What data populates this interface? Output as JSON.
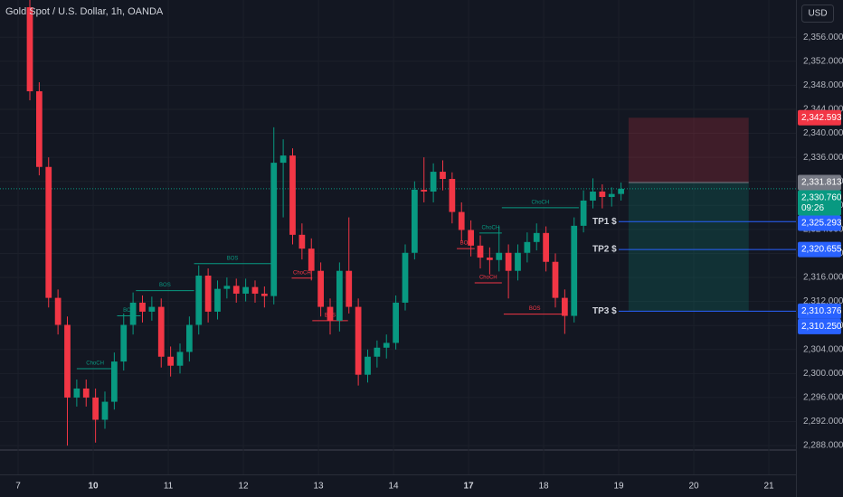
{
  "chart_data": {
    "type": "candlestick",
    "title": "Gold Spot / U.S. Dollar, 1h, OANDA",
    "currency": "USD",
    "countdown": "09:26",
    "up_color": "#089981",
    "down_color": "#f23645",
    "xlim": [
      -3.18,
      81.64
    ],
    "xticks": [
      {
        "value": -1.25,
        "label": "7"
      },
      {
        "value": 6.75,
        "label": "10",
        "bold": true
      },
      {
        "value": 14.75,
        "label": "11"
      },
      {
        "value": 22.75,
        "label": "12"
      },
      {
        "value": 30.75,
        "label": "13"
      },
      {
        "value": 38.75,
        "label": "14"
      },
      {
        "value": 46.75,
        "label": "17",
        "bold": true
      },
      {
        "value": 54.75,
        "label": "18"
      },
      {
        "value": 62.75,
        "label": "19"
      },
      {
        "value": 70.75,
        "label": "20"
      },
      {
        "value": 78.75,
        "label": "21"
      }
    ],
    "ylim": [
      2283.2,
      2362.2
    ],
    "yticks": [
      {
        "value": 2288,
        "label": "2,288.000"
      },
      {
        "value": 2292,
        "label": "2,292.000"
      },
      {
        "value": 2296,
        "label": "2,296.000"
      },
      {
        "value": 2300,
        "label": "2,300.000"
      },
      {
        "value": 2304,
        "label": "2,304.000"
      },
      {
        "value": 2308,
        "label": "2,308.000"
      },
      {
        "value": 2312,
        "label": "2,312.000"
      },
      {
        "value": 2316,
        "label": "2,316.000"
      },
      {
        "value": 2320,
        "label": "2,320.000"
      },
      {
        "value": 2324,
        "label": "2,324.000"
      },
      {
        "value": 2328,
        "label": "2,328.000"
      },
      {
        "value": 2332,
        "label": "2,332.000"
      },
      {
        "value": 2336,
        "label": "2,336.000"
      },
      {
        "value": 2340,
        "label": "2,340.000"
      },
      {
        "value": 2344,
        "label": "2,344.000"
      },
      {
        "value": 2348,
        "label": "2,348.000"
      },
      {
        "value": 2352,
        "label": "2,352.000"
      },
      {
        "value": 2356,
        "label": "2,356.000"
      }
    ],
    "open": [
      2361.0,
      2347.0,
      2334.4,
      2312.6,
      2308.1,
      2296.0,
      2297.5,
      2296.0,
      2292.3,
      2295.3,
      2302.0,
      2308.1,
      2311.8,
      2310.3,
      2311.1,
      2302.8,
      2301.3,
      2303.6,
      2308.1,
      2316.3,
      2310.3,
      2314.1,
      2314.6,
      2313.3,
      2314.4,
      2313.3,
      2312.9,
      2335.1,
      2336.3,
      2323.1,
      2320.8,
      2317.1,
      2311.1,
      2308.8,
      2317.1,
      2311.1,
      2299.8,
      2302.8,
      2304.3,
      2305.1,
      2311.8,
      2320.1,
      2330.6,
      2330.3,
      2333.6,
      2332.4,
      2326.9,
      2323.9,
      2321.3,
      2319.3,
      2318.9,
      2320.1,
      2317.1,
      2320.1,
      2321.9,
      2323.4,
      2318.6,
      2312.6,
      2309.6,
      2324.6,
      2328.8,
      2330.3,
      2329.4,
      2329.9
    ],
    "high": [
      2362.2,
      2348.5,
      2336.0,
      2314.0,
      2309.5,
      2299.0,
      2299.0,
      2297.5,
      2297.0,
      2303.5,
      2310.0,
      2313.5,
      2313.0,
      2312.8,
      2312.5,
      2304.5,
      2305.0,
      2309.5,
      2318.0,
      2317.5,
      2315.5,
      2316.0,
      2315.8,
      2315.8,
      2315.5,
      2314.5,
      2341.0,
      2339.0,
      2337.5,
      2325.0,
      2322.5,
      2318.5,
      2312.5,
      2318.5,
      2326.0,
      2312.5,
      2304.0,
      2305.5,
      2306.5,
      2313.0,
      2321.5,
      2332.0,
      2336.0,
      2335.0,
      2335.5,
      2333.5,
      2328.5,
      2325.5,
      2323.0,
      2321.0,
      2324.5,
      2321.5,
      2321.5,
      2323.5,
      2325.0,
      2324.5,
      2320.0,
      2314.0,
      2326.0,
      2330.5,
      2332.5,
      2331.5,
      2331.0,
      2331.8
    ],
    "low": [
      2345.5,
      2333.0,
      2311.0,
      2306.5,
      2288.0,
      2294.5,
      2294.5,
      2288.5,
      2290.8,
      2294.0,
      2300.5,
      2306.5,
      2308.5,
      2308.8,
      2301.0,
      2299.5,
      2300.0,
      2302.0,
      2306.5,
      2308.5,
      2309.0,
      2312.5,
      2311.8,
      2312.0,
      2311.8,
      2311.0,
      2311.5,
      2326.0,
      2321.5,
      2319.0,
      2315.5,
      2309.5,
      2306.5,
      2307.0,
      2310.0,
      2298.0,
      2298.5,
      2301.0,
      2302.5,
      2304.0,
      2310.5,
      2319.0,
      2328.5,
      2328.5,
      2330.5,
      2325.0,
      2322.0,
      2319.5,
      2317.5,
      2316.5,
      2317.0,
      2312.5,
      2315.5,
      2318.5,
      2320.5,
      2317.0,
      2311.0,
      2306.6,
      2308.5,
      2323.5,
      2327.5,
      2327.5,
      2327.8,
      2328.8
    ],
    "close": [
      2347.0,
      2334.4,
      2312.6,
      2308.1,
      2296.0,
      2297.5,
      2296.0,
      2292.3,
      2295.3,
      2302.0,
      2308.1,
      2311.8,
      2310.3,
      2311.1,
      2302.8,
      2301.3,
      2303.6,
      2308.1,
      2316.3,
      2310.3,
      2314.1,
      2314.6,
      2313.3,
      2314.4,
      2313.3,
      2312.9,
      2335.1,
      2336.3,
      2323.1,
      2320.8,
      2317.1,
      2311.1,
      2308.8,
      2317.1,
      2311.1,
      2299.8,
      2302.8,
      2304.3,
      2305.1,
      2311.8,
      2320.1,
      2330.6,
      2330.3,
      2333.6,
      2332.4,
      2326.9,
      2323.9,
      2321.3,
      2319.3,
      2318.9,
      2320.1,
      2317.1,
      2320.1,
      2321.9,
      2323.4,
      2318.6,
      2312.6,
      2309.6,
      2324.6,
      2328.8,
      2330.3,
      2329.4,
      2329.9,
      2330.76
    ],
    "last_label": "2,330.760",
    "structures": [
      {
        "label": "ChoCH",
        "price": 2300.8,
        "x": [
          5.0,
          8.9
        ],
        "color": "#089981"
      },
      {
        "label": "BOS",
        "price": 2309.6,
        "x": [
          9.3,
          11.8
        ],
        "color": "#089981"
      },
      {
        "label": "BOS",
        "price": 2313.8,
        "x": [
          11.3,
          17.5
        ],
        "color": "#089981"
      },
      {
        "label": "BOS",
        "price": 2318.3,
        "x": [
          17.5,
          25.7
        ],
        "color": "#089981"
      },
      {
        "label": "ChoCH",
        "price": 2315.9,
        "x": [
          27.9,
          30.1
        ],
        "color": "#f23645"
      },
      {
        "label": "BOS",
        "price": 2308.8,
        "x": [
          30.1,
          33.9
        ],
        "color": "#f23645"
      },
      {
        "label": "BOS",
        "price": 2320.8,
        "x": [
          45.5,
          47.4
        ],
        "color": "#f23645"
      },
      {
        "label": "ChoCH",
        "price": 2323.4,
        "x": [
          47.9,
          50.3
        ],
        "color": "#089981"
      },
      {
        "label": "ChoCH",
        "price": 2315.1,
        "x": [
          47.4,
          50.3
        ],
        "color": "#f23645"
      },
      {
        "label": "BOS",
        "price": 2309.9,
        "x": [
          50.5,
          57.1
        ],
        "color": "#f23645"
      },
      {
        "label": "ChoCH",
        "price": 2327.6,
        "x": [
          50.3,
          58.5
        ],
        "color": "#089981"
      }
    ],
    "position": {
      "x": [
        63.8,
        76.6
      ],
      "stop": {
        "value": 2342.593,
        "label": "2,342.593"
      },
      "entry": {
        "value": 2331.813,
        "label": "2,331.813"
      }
    },
    "targets": [
      {
        "name": "TP1 $",
        "value": 2325.293,
        "label": "2,325.293"
      },
      {
        "name": "TP2 $",
        "value": 2320.655,
        "label": "2,320.655"
      },
      {
        "name": "TP3 $",
        "value": 2310.376,
        "label": "2,310.376"
      }
    ],
    "extra_label": {
      "value": 2310.25,
      "label": "2,310.250"
    }
  }
}
